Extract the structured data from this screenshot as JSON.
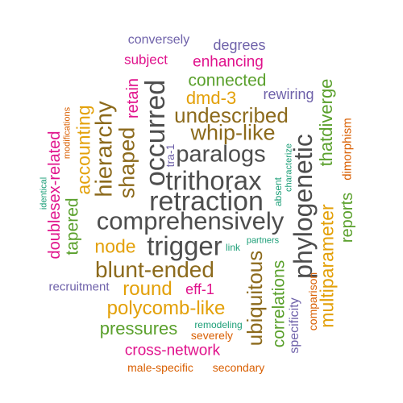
{
  "title": "",
  "colors": {
    "gray": "#4d4d4d",
    "brown": "#8c6a1c",
    "gold": "#e3a008",
    "green": "#5aa02c",
    "magenta": "#e0138c",
    "purple": "#6f62aa",
    "teal": "#1b9e77",
    "orange": "#d95f02"
  },
  "words": [
    {
      "text": "conversely",
      "color": "purple"
    },
    {
      "text": "degrees",
      "color": "purple"
    },
    {
      "text": "subject",
      "color": "magenta"
    },
    {
      "text": "enhancing",
      "color": "magenta"
    },
    {
      "text": "connected",
      "color": "green"
    },
    {
      "text": "dmd-3",
      "color": "gold"
    },
    {
      "text": "rewiring",
      "color": "purple"
    },
    {
      "text": "undescribed",
      "color": "brown"
    },
    {
      "text": "whip-like",
      "color": "brown"
    },
    {
      "text": "paralogs",
      "color": "gray"
    },
    {
      "text": "trithorax",
      "color": "gray"
    },
    {
      "text": "retraction",
      "color": "gray"
    },
    {
      "text": "comprehensively",
      "color": "gray"
    },
    {
      "text": "trigger",
      "color": "gray"
    },
    {
      "text": "node",
      "color": "gold"
    },
    {
      "text": "blunt-ended",
      "color": "brown"
    },
    {
      "text": "round",
      "color": "gold"
    },
    {
      "text": "eff-1",
      "color": "magenta"
    },
    {
      "text": "recruitment",
      "color": "purple"
    },
    {
      "text": "polycomb-like",
      "color": "gold"
    },
    {
      "text": "pressures",
      "color": "green"
    },
    {
      "text": "remodeling",
      "color": "teal"
    },
    {
      "text": "severely",
      "color": "orange"
    },
    {
      "text": "cross-network",
      "color": "magenta"
    },
    {
      "text": "male-specific",
      "color": "orange"
    },
    {
      "text": "secondary",
      "color": "orange"
    },
    {
      "text": "link",
      "color": "teal"
    },
    {
      "text": "partners",
      "color": "teal"
    },
    {
      "text": "identical",
      "color": "teal"
    },
    {
      "text": "modifications",
      "color": "orange"
    },
    {
      "text": "doublesex-related",
      "color": "magenta"
    },
    {
      "text": "accounting",
      "color": "gold"
    },
    {
      "text": "tapered",
      "color": "green"
    },
    {
      "text": "hierarchy",
      "color": "brown"
    },
    {
      "text": "shaped",
      "color": "brown"
    },
    {
      "text": "retain",
      "color": "magenta"
    },
    {
      "text": "occurred",
      "color": "gray"
    },
    {
      "text": "tra-1",
      "color": "purple"
    },
    {
      "text": "absent",
      "color": "teal"
    },
    {
      "text": "characterize",
      "color": "teal"
    },
    {
      "text": "phylogenetic",
      "color": "gray"
    },
    {
      "text": "thatdiverge",
      "color": "green"
    },
    {
      "text": "dimorphism",
      "color": "orange"
    },
    {
      "text": "reports",
      "color": "green"
    },
    {
      "text": "multiparameter",
      "color": "gold"
    },
    {
      "text": "comparison",
      "color": "orange"
    },
    {
      "text": "specificity",
      "color": "purple"
    },
    {
      "text": "correlations",
      "color": "green"
    },
    {
      "text": "ubiquitous",
      "color": "brown"
    }
  ]
}
